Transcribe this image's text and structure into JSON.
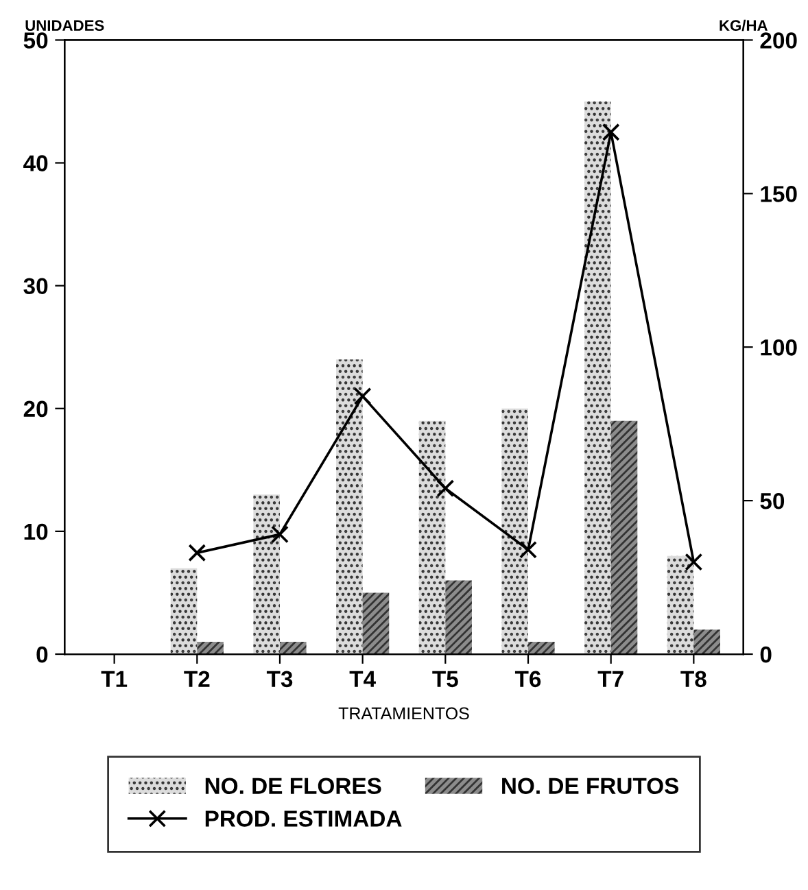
{
  "chart_data": {
    "type": "bar",
    "ylabel": "UNIDADES",
    "y2label": "KG/HA",
    "xlabel": "TRATAMIENTOS",
    "categories": [
      "T1",
      "T2",
      "T3",
      "T4",
      "T5",
      "T6",
      "T7",
      "T8"
    ],
    "series": [
      {
        "name": "NO. DE FLORES",
        "color": "#dcdcdc",
        "values": [
          0,
          7,
          13,
          24,
          19,
          20,
          45,
          8
        ]
      },
      {
        "name": "NO. DE FRUTOS",
        "color": "#8c8c8c",
        "values": [
          0,
          1,
          1,
          5,
          6,
          1,
          19,
          2
        ]
      },
      {
        "name": "PROD. ESTIMADA",
        "type": "line",
        "axis": "y2",
        "color": "#000000",
        "marker": "cross",
        "values": [
          null,
          33,
          39,
          84,
          54,
          34,
          170,
          30
        ]
      }
    ],
    "ylim": [
      0,
      50
    ],
    "yticks": [
      0,
      10,
      20,
      30,
      40,
      50
    ],
    "y2lim": [
      0,
      200
    ],
    "y2ticks": [
      0,
      50,
      100,
      150,
      200
    ],
    "grid": false,
    "legend": "bottom"
  }
}
